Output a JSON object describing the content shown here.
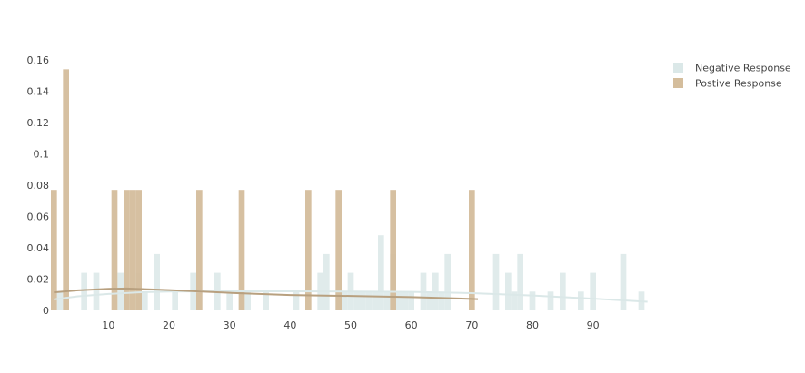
{
  "chart_data": {
    "type": "bar",
    "xlim": [
      1,
      99
    ],
    "ylim": [
      0,
      0.16
    ],
    "x_ticks": [
      10,
      20,
      30,
      40,
      50,
      60,
      70,
      80,
      90
    ],
    "y_ticks": [
      0,
      0.02,
      0.04,
      0.06,
      0.08,
      0.1,
      0.12,
      0.14,
      0.16
    ],
    "y_tick_labels": [
      "0",
      "0.02",
      "0.04",
      "0.06",
      "0.08",
      "0.1",
      "0.12",
      "0.14",
      "0.16"
    ],
    "grid": false,
    "legend_position": "top-right",
    "series": [
      {
        "name": "Negative Response",
        "color": "#dbe8e8",
        "bar_width": 1,
        "x": [
          2,
          6,
          8,
          12,
          13,
          15,
          16,
          18,
          21,
          24,
          25,
          28,
          30,
          32,
          33,
          36,
          41,
          45,
          46,
          48,
          49,
          50,
          51,
          52,
          53,
          54,
          55,
          56,
          57,
          58,
          59,
          60,
          62,
          63,
          64,
          65,
          66,
          74,
          76,
          77,
          78,
          80,
          83,
          85,
          88,
          90,
          95,
          98
        ],
        "values": [
          0.012,
          0.024,
          0.024,
          0.024,
          0.012,
          0.024,
          0.012,
          0.036,
          0.012,
          0.024,
          0.012,
          0.024,
          0.012,
          0.012,
          0.012,
          0.012,
          0.012,
          0.024,
          0.036,
          0.012,
          0.012,
          0.024,
          0.012,
          0.012,
          0.012,
          0.012,
          0.048,
          0.012,
          0.036,
          0.012,
          0.012,
          0.012,
          0.024,
          0.012,
          0.024,
          0.012,
          0.036,
          0.036,
          0.024,
          0.012,
          0.036,
          0.012,
          0.012,
          0.024,
          0.012,
          0.024,
          0.036,
          0.012
        ]
      },
      {
        "name": "Postive Response",
        "color": "#d4bd9c",
        "bar_width": 1,
        "x": [
          1,
          3,
          11,
          13,
          14,
          15,
          25,
          32,
          43,
          48,
          57,
          70
        ],
        "values": [
          0.077,
          0.154,
          0.077,
          0.077,
          0.077,
          0.077,
          0.077,
          0.077,
          0.077,
          0.077,
          0.077,
          0.077
        ]
      }
    ],
    "curves": [
      {
        "color": "#dbe8e8",
        "x": [
          1,
          5,
          10,
          15,
          20,
          30,
          40,
          50,
          60,
          70,
          80,
          90,
          99
        ],
        "y": [
          0.007,
          0.009,
          0.0105,
          0.0115,
          0.012,
          0.0122,
          0.0122,
          0.012,
          0.0118,
          0.011,
          0.0095,
          0.0075,
          0.0055
        ]
      },
      {
        "color": "#b8a07f",
        "x": [
          1,
          5,
          10,
          13,
          20,
          30,
          40,
          50,
          60,
          71
        ],
        "y": [
          0.0115,
          0.0128,
          0.0138,
          0.014,
          0.013,
          0.0112,
          0.0098,
          0.0092,
          0.0085,
          0.0072
        ]
      }
    ]
  }
}
